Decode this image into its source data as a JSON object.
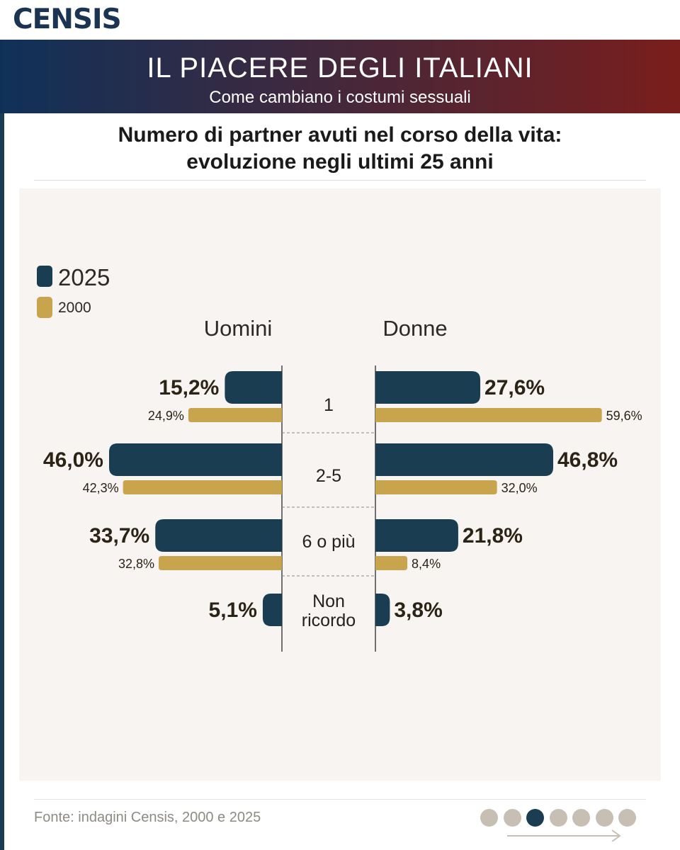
{
  "colors": {
    "brand": "#1c3454",
    "banner_start": "#0f3159",
    "banner_end": "#7a1e1c",
    "series_2025": "#1b3d52",
    "series_2000": "#c8a44d",
    "panel_bg": "#f7f4f1",
    "dot_inactive": "#c8bfb4",
    "dot_active": "#1b3d52"
  },
  "header": {
    "logo": "CENSIS",
    "title": "IL PIACERE DEGLI ITALIANI",
    "subtitle": "Come cambiano i costumi sessuali"
  },
  "chart_data": {
    "type": "bar",
    "title": "Numero di partner avuti nel corso della vita: evoluzione negli ultimi 25 anni",
    "title_lines": [
      "Numero di partner avuti nel corso della vita:",
      "evoluzione negli ultimi 25 anni"
    ],
    "left_label": "Uomini",
    "right_label": "Donne",
    "legend": [
      "2025",
      "2000"
    ],
    "legend_position": "top-left",
    "categories": [
      "1",
      "2-5",
      "6 o più",
      "Non ricordo"
    ],
    "series": [
      {
        "name": "2025",
        "group": "Uomini",
        "values": [
          15.2,
          46.0,
          33.7,
          5.1
        ],
        "labels": [
          "15,2%",
          "46,0%",
          "33,7%",
          "5,1%"
        ]
      },
      {
        "name": "2000",
        "group": "Uomini",
        "values": [
          24.9,
          42.3,
          32.8,
          null
        ],
        "labels": [
          "24,9%",
          "42,3%",
          "32,8%",
          ""
        ]
      },
      {
        "name": "2025",
        "group": "Donne",
        "values": [
          27.6,
          46.8,
          21.8,
          3.8
        ],
        "labels": [
          "27,6%",
          "46,8%",
          "21,8%",
          "3,8%"
        ]
      },
      {
        "name": "2000",
        "group": "Donne",
        "values": [
          59.6,
          32.0,
          8.4,
          null
        ],
        "labels": [
          "59,6%",
          "32,0%",
          "8,4%",
          ""
        ]
      }
    ]
  },
  "footer": {
    "source": "Fonte: indagini Censis, 2000 e 2025",
    "pagination": {
      "total": 7,
      "active": 3
    }
  }
}
